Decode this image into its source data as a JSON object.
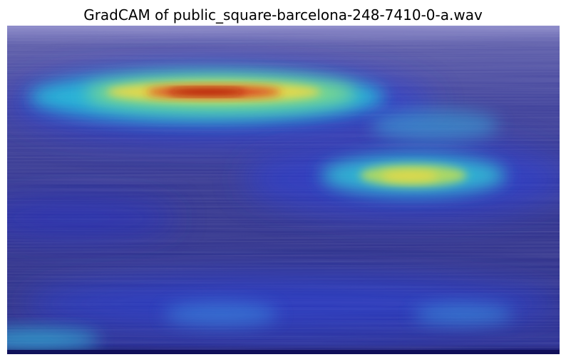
{
  "figure": {
    "title": "GradCAM of public_square-barcelona-248-7410-0-a.wav"
  },
  "chart_data": {
    "type": "heatmap",
    "title": "GradCAM of public_square-barcelona-248-7410-0-a.wav",
    "xlabel": "",
    "ylabel": "",
    "axes_visible": false,
    "grid": false,
    "colormap": "jet",
    "overlay_alpha": 0.5,
    "background": "spectrogram",
    "colors": {
      "low": "#1e1ee6",
      "cyan": "#3fd6d6",
      "yellow": "#e6e14a",
      "red": "#cc1a10"
    },
    "activation_regions": [
      {
        "label": "upper-left band",
        "peak": 1.0
      },
      {
        "label": "right-middle blob",
        "peak": 0.6
      },
      {
        "label": "right upper patch",
        "peak": 0.35
      },
      {
        "label": "bottom-left strip",
        "peak": 0.3
      },
      {
        "label": "bottom-middle patch",
        "peak": 0.25
      },
      {
        "label": "bottom-right patch",
        "peak": 0.25
      }
    ]
  }
}
